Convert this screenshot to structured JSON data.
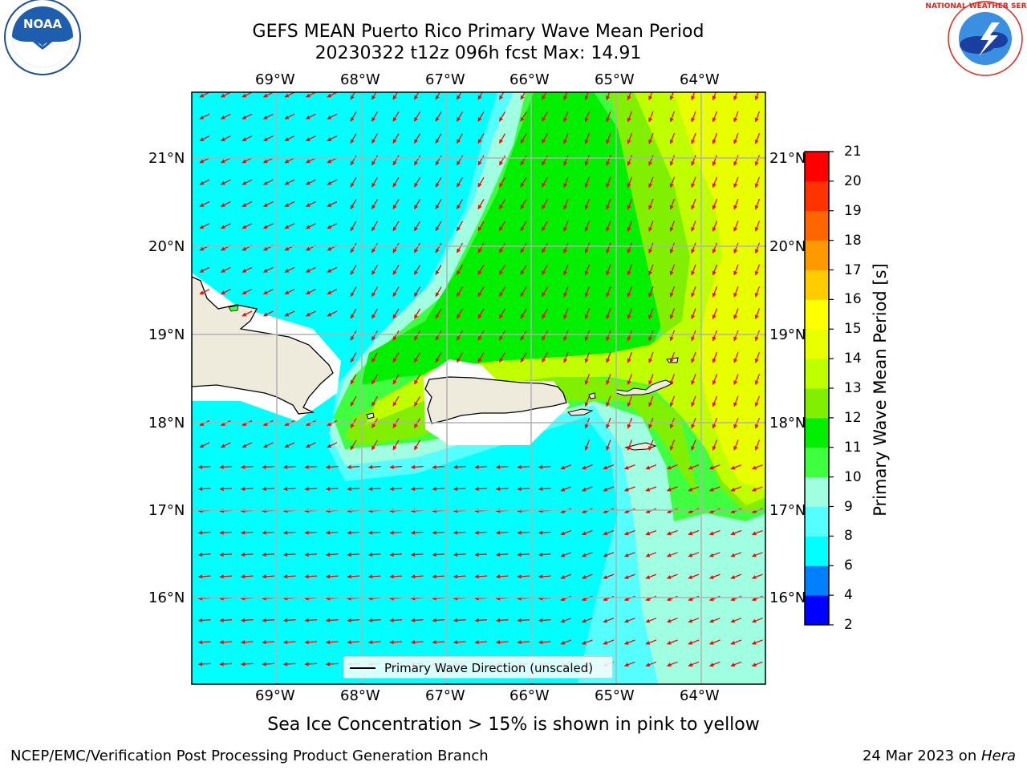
{
  "header": {
    "title_line1": "GEFS MEAN Puerto Rico Primary Wave Mean Period",
    "title_line2": "20230322 t12z 096h fcst   Max: 14.91"
  },
  "logos": {
    "left": {
      "icon": "noaa-logo",
      "text": "NOAA"
    },
    "right": {
      "icon": "national-weather-service-logo",
      "text": "NATIONAL WEATHER SERVICE"
    }
  },
  "map": {
    "lon_labels": [
      "69°W",
      "68°W",
      "67°W",
      "66°W",
      "65°W",
      "64°W"
    ],
    "lat_labels": [
      "21°N",
      "20°N",
      "19°N",
      "18°N",
      "17°N",
      "16°N"
    ],
    "legend_label": "Primary Wave Direction (unscaled)",
    "ocean_color": "#00ffff",
    "land_color": "#efebdc",
    "arrow_color": "#ff0000"
  },
  "colorbar": {
    "title": "Primary Wave Mean Period [s]",
    "ticks": [
      "2",
      "4",
      "6",
      "8",
      "9",
      "10",
      "11",
      "12",
      "13",
      "14",
      "15",
      "16",
      "17",
      "18",
      "19",
      "20",
      "21"
    ],
    "colors": [
      "#0000ff",
      "#0080ff",
      "#00ffff",
      "#55ffff",
      "#a0ffe0",
      "#40ff40",
      "#00f000",
      "#80f000",
      "#c0ff00",
      "#e8ff00",
      "#ffff00",
      "#ffcc00",
      "#ff9900",
      "#ff6600",
      "#ff3300",
      "#ff0000"
    ]
  },
  "bottom_note": "Sea Ice Concentration > 15% is shown in pink to yellow",
  "footer": {
    "left": "NCEP/EMC/Verification Post Processing Product Generation Branch",
    "right_prefix": "24 Mar 2023 on ",
    "right_host": "Hera"
  }
}
